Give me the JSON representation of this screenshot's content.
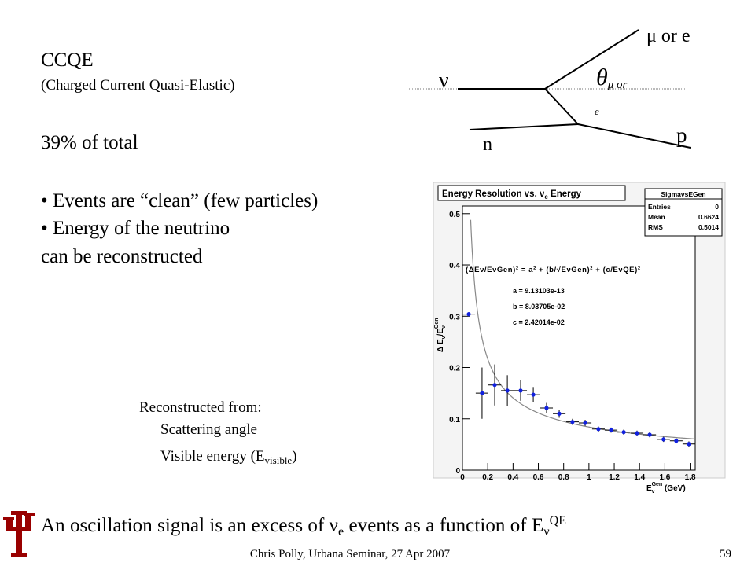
{
  "slide": {
    "title": "CCQE",
    "subtitle": "(Charged Current Quasi-Elastic)",
    "fraction": "39% of total",
    "bullets": [
      "• Events are “clean” (few particles)",
      "• Energy of the neutrino"
    ],
    "continuation": "can be reconstructed",
    "reco_heading": "Reconstructed from:",
    "reco_angle": "Scattering angle",
    "reco_energy": [
      "Visible energy (E",
      "visible",
      ")"
    ],
    "conclusion": [
      "An oscillation signal is an excess of ν",
      "e",
      " events as a function of E",
      "ν",
      "QE"
    ],
    "footer": "Chris Polly, Urbana Seminar, 27 Apr 2007",
    "page": "59"
  },
  "diagram": {
    "neutrino": "ν",
    "nucleon": "n",
    "lepton": "μ or e",
    "proton": "p",
    "angle": [
      "θ",
      "μ or",
      "e"
    ]
  },
  "chart_data": {
    "type": "scatter",
    "title": [
      "Energy Resolution vs. ν",
      "e",
      " Energy"
    ],
    "stats": {
      "name": "SigmavsEGen",
      "rows": [
        {
          "label": "Entries",
          "value": 0
        },
        {
          "label": "Mean",
          "value": 0.6624
        },
        {
          "label": "RMS",
          "value": 0.5014
        }
      ]
    },
    "formula": "(ΔEν/EνGen)² = a² + (b/√EνGen)² + (c/EνQE)²",
    "fit": {
      "color": "#888888",
      "params": [
        {
          "value": 9.13103e-13,
          "label": "a = 9.13103e-13"
        },
        {
          "value": 0.0803705,
          "label": "b = 8.03705e-02"
        },
        {
          "value": 0.0242014,
          "label": "c = 2.42014e-02"
        }
      ]
    },
    "ylabel": [
      "Δ E",
      "ν",
      "/E",
      "ν",
      "Gen"
    ],
    "xlabel": [
      "E",
      "ν",
      "Gen",
      " (GeV)"
    ],
    "xlim": [
      0,
      1.84
    ],
    "ylim": [
      0,
      0.515
    ],
    "xticks": [
      0,
      0.2,
      0.4,
      0.6,
      0.8,
      1,
      1.2,
      1.4,
      1.6,
      1.8
    ],
    "yticks": [
      0,
      0.1,
      0.2,
      0.3,
      0.4,
      0.5
    ],
    "series": [
      {
        "color": "#1020e0",
        "x": [
          0.05,
          0.155,
          0.255,
          0.355,
          0.46,
          0.56,
          0.665,
          0.765,
          0.87,
          0.97,
          1.075,
          1.175,
          1.275,
          1.38,
          1.48,
          1.59,
          1.69,
          1.79
        ],
        "y": [
          0.304,
          0.15,
          0.166,
          0.155,
          0.155,
          0.147,
          0.121,
          0.11,
          0.094,
          0.092,
          0.08,
          0.078,
          0.074,
          0.072,
          0.069,
          0.06,
          0.057,
          0.051
        ],
        "xerr": [
          0.05,
          0.05,
          0.05,
          0.05,
          0.05,
          0.05,
          0.05,
          0.05,
          0.05,
          0.05,
          0.05,
          0.05,
          0.05,
          0.05,
          0.05,
          0.05,
          0.05,
          0.05
        ],
        "yerr": [
          0.003,
          0.05,
          0.04,
          0.03,
          0.02,
          0.015,
          0.01,
          0.008,
          0.006,
          0.006,
          0.005,
          0.005,
          0.005,
          0.005,
          0.005,
          0.005,
          0.005,
          0.005
        ]
      }
    ]
  }
}
